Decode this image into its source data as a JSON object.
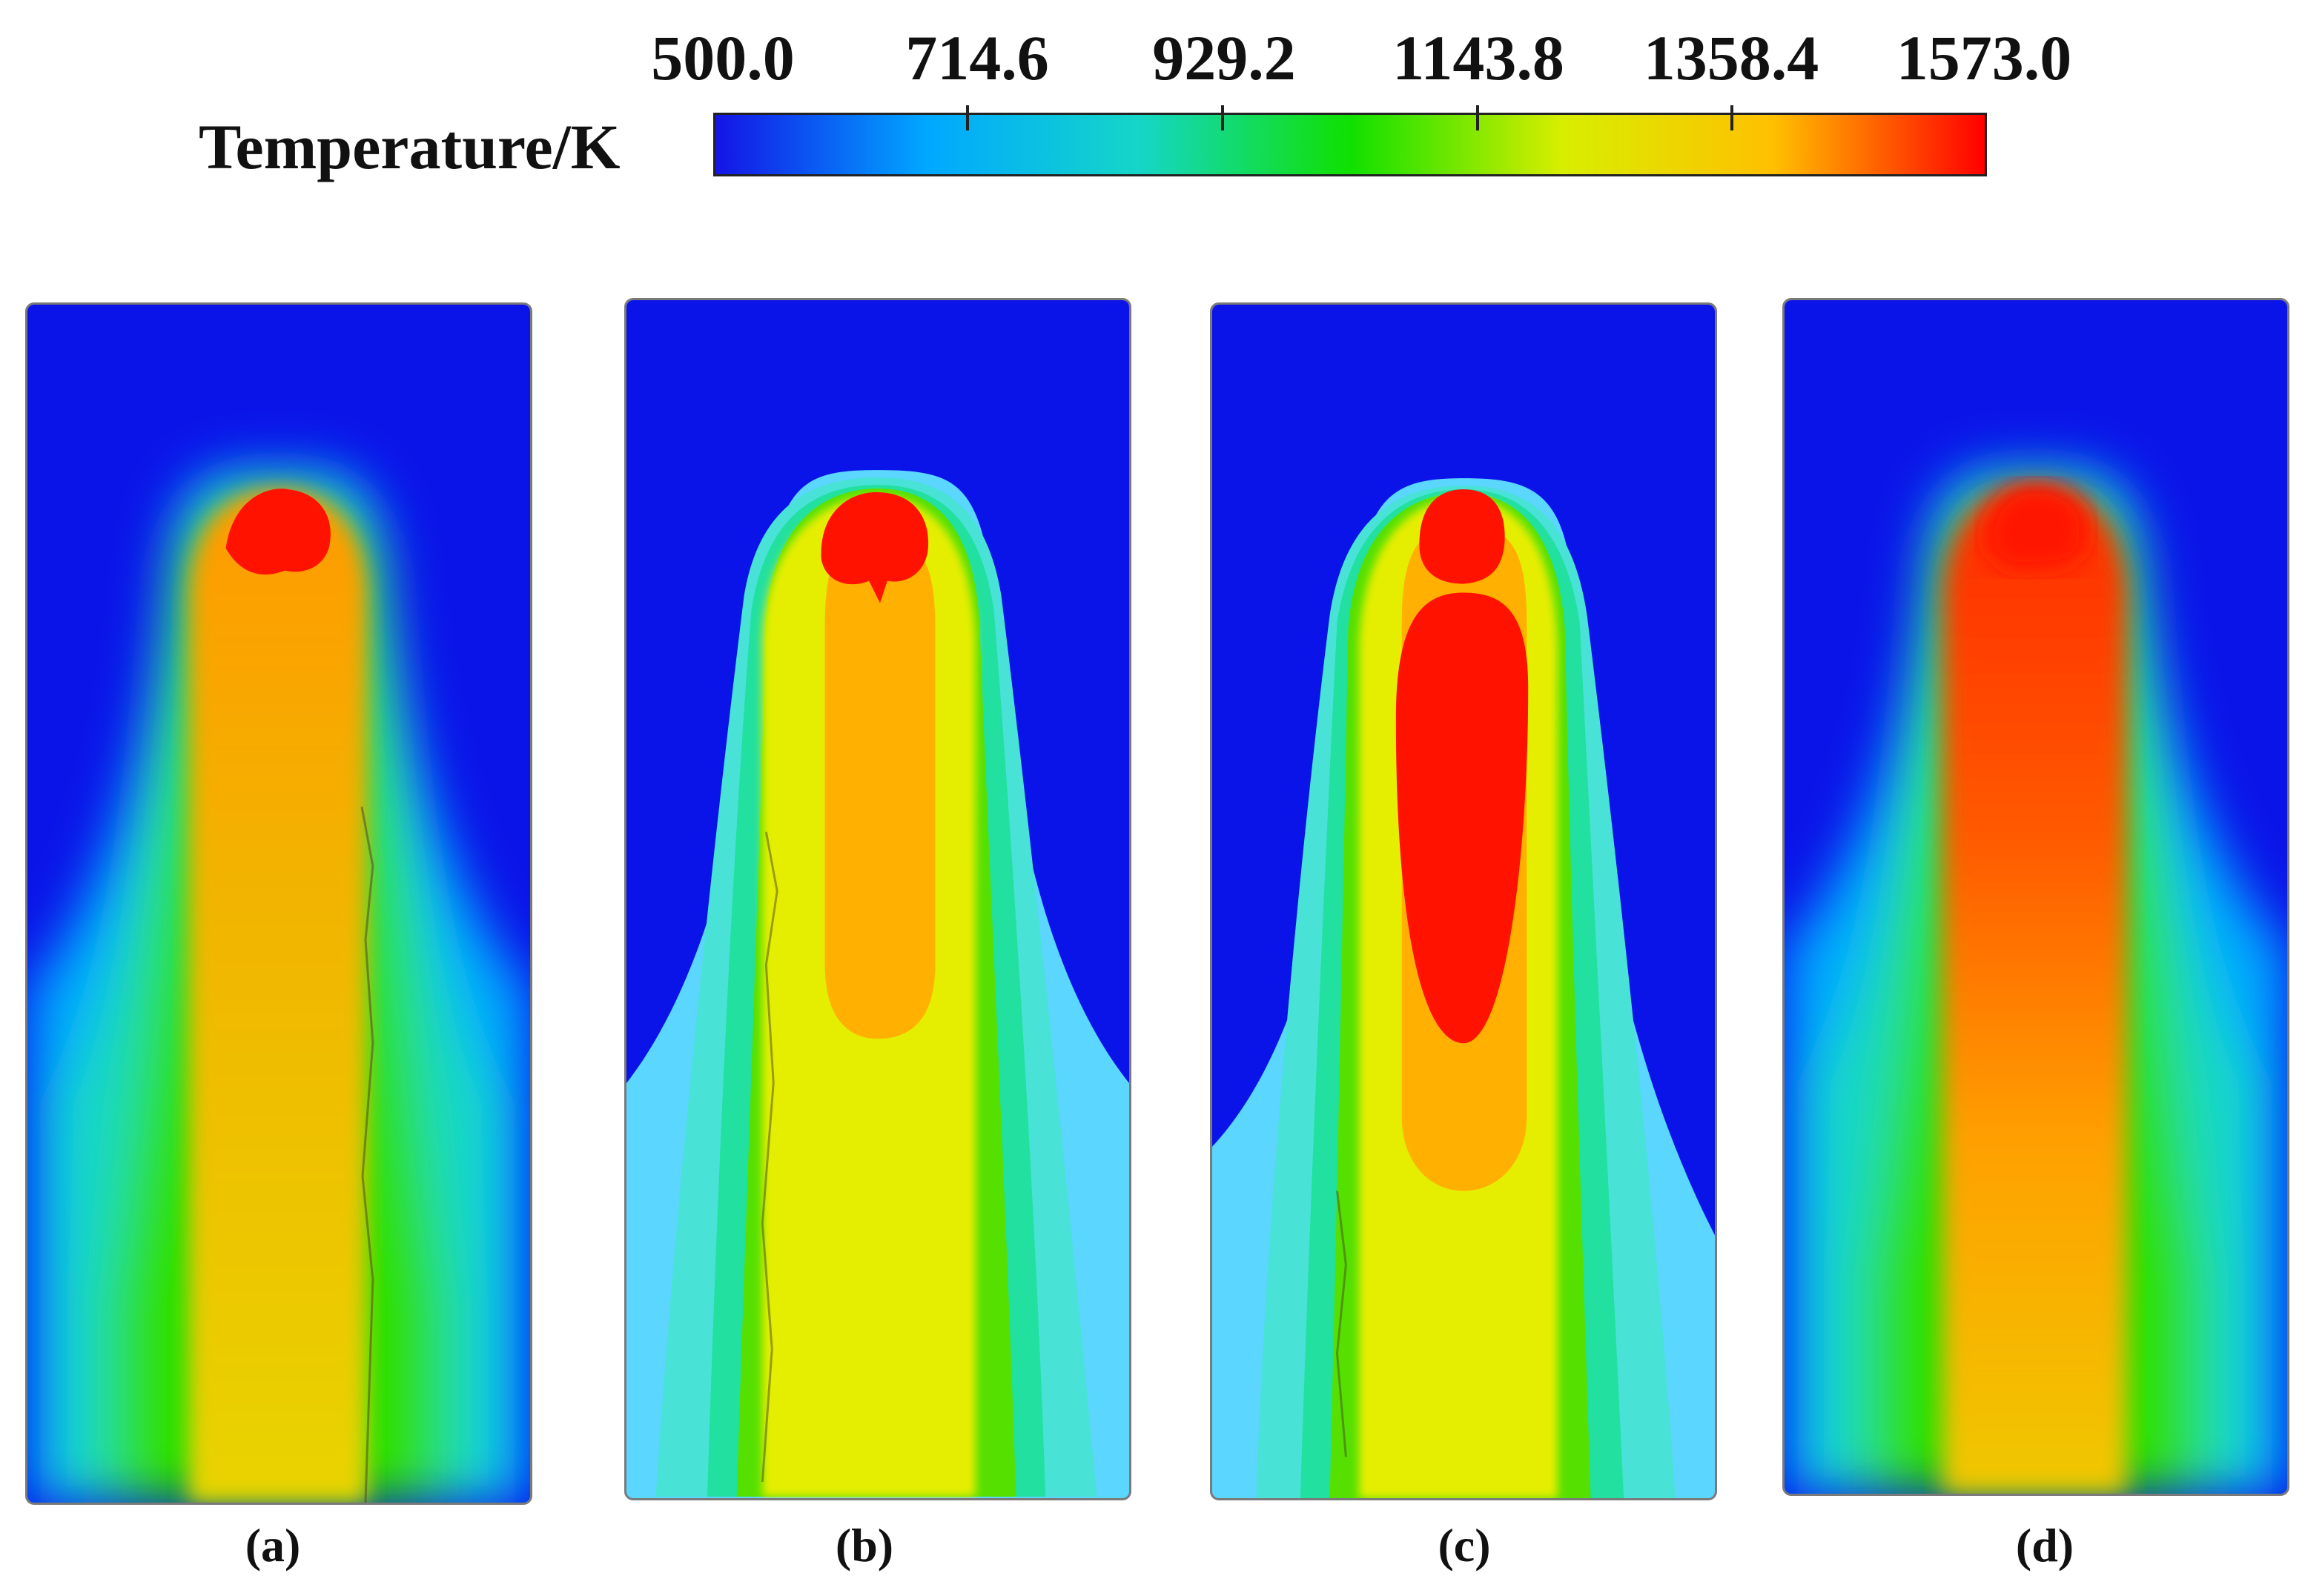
{
  "legend": {
    "title": "Temperature/K",
    "ticks": [
      "500.0",
      "714.6",
      "929.2",
      "1143.8",
      "1358.4",
      "1573.0"
    ],
    "min": 500.0,
    "max": 1573.0,
    "colors": [
      "#1414e6",
      "#00a8ff",
      "#15d6c8",
      "#10e000",
      "#d8ee00",
      "#ffc000",
      "#ff0000"
    ]
  },
  "panels": [
    {
      "label": "(a)"
    },
    {
      "label": "(b)"
    },
    {
      "label": "(c)"
    },
    {
      "label": "(d)"
    }
  ]
}
